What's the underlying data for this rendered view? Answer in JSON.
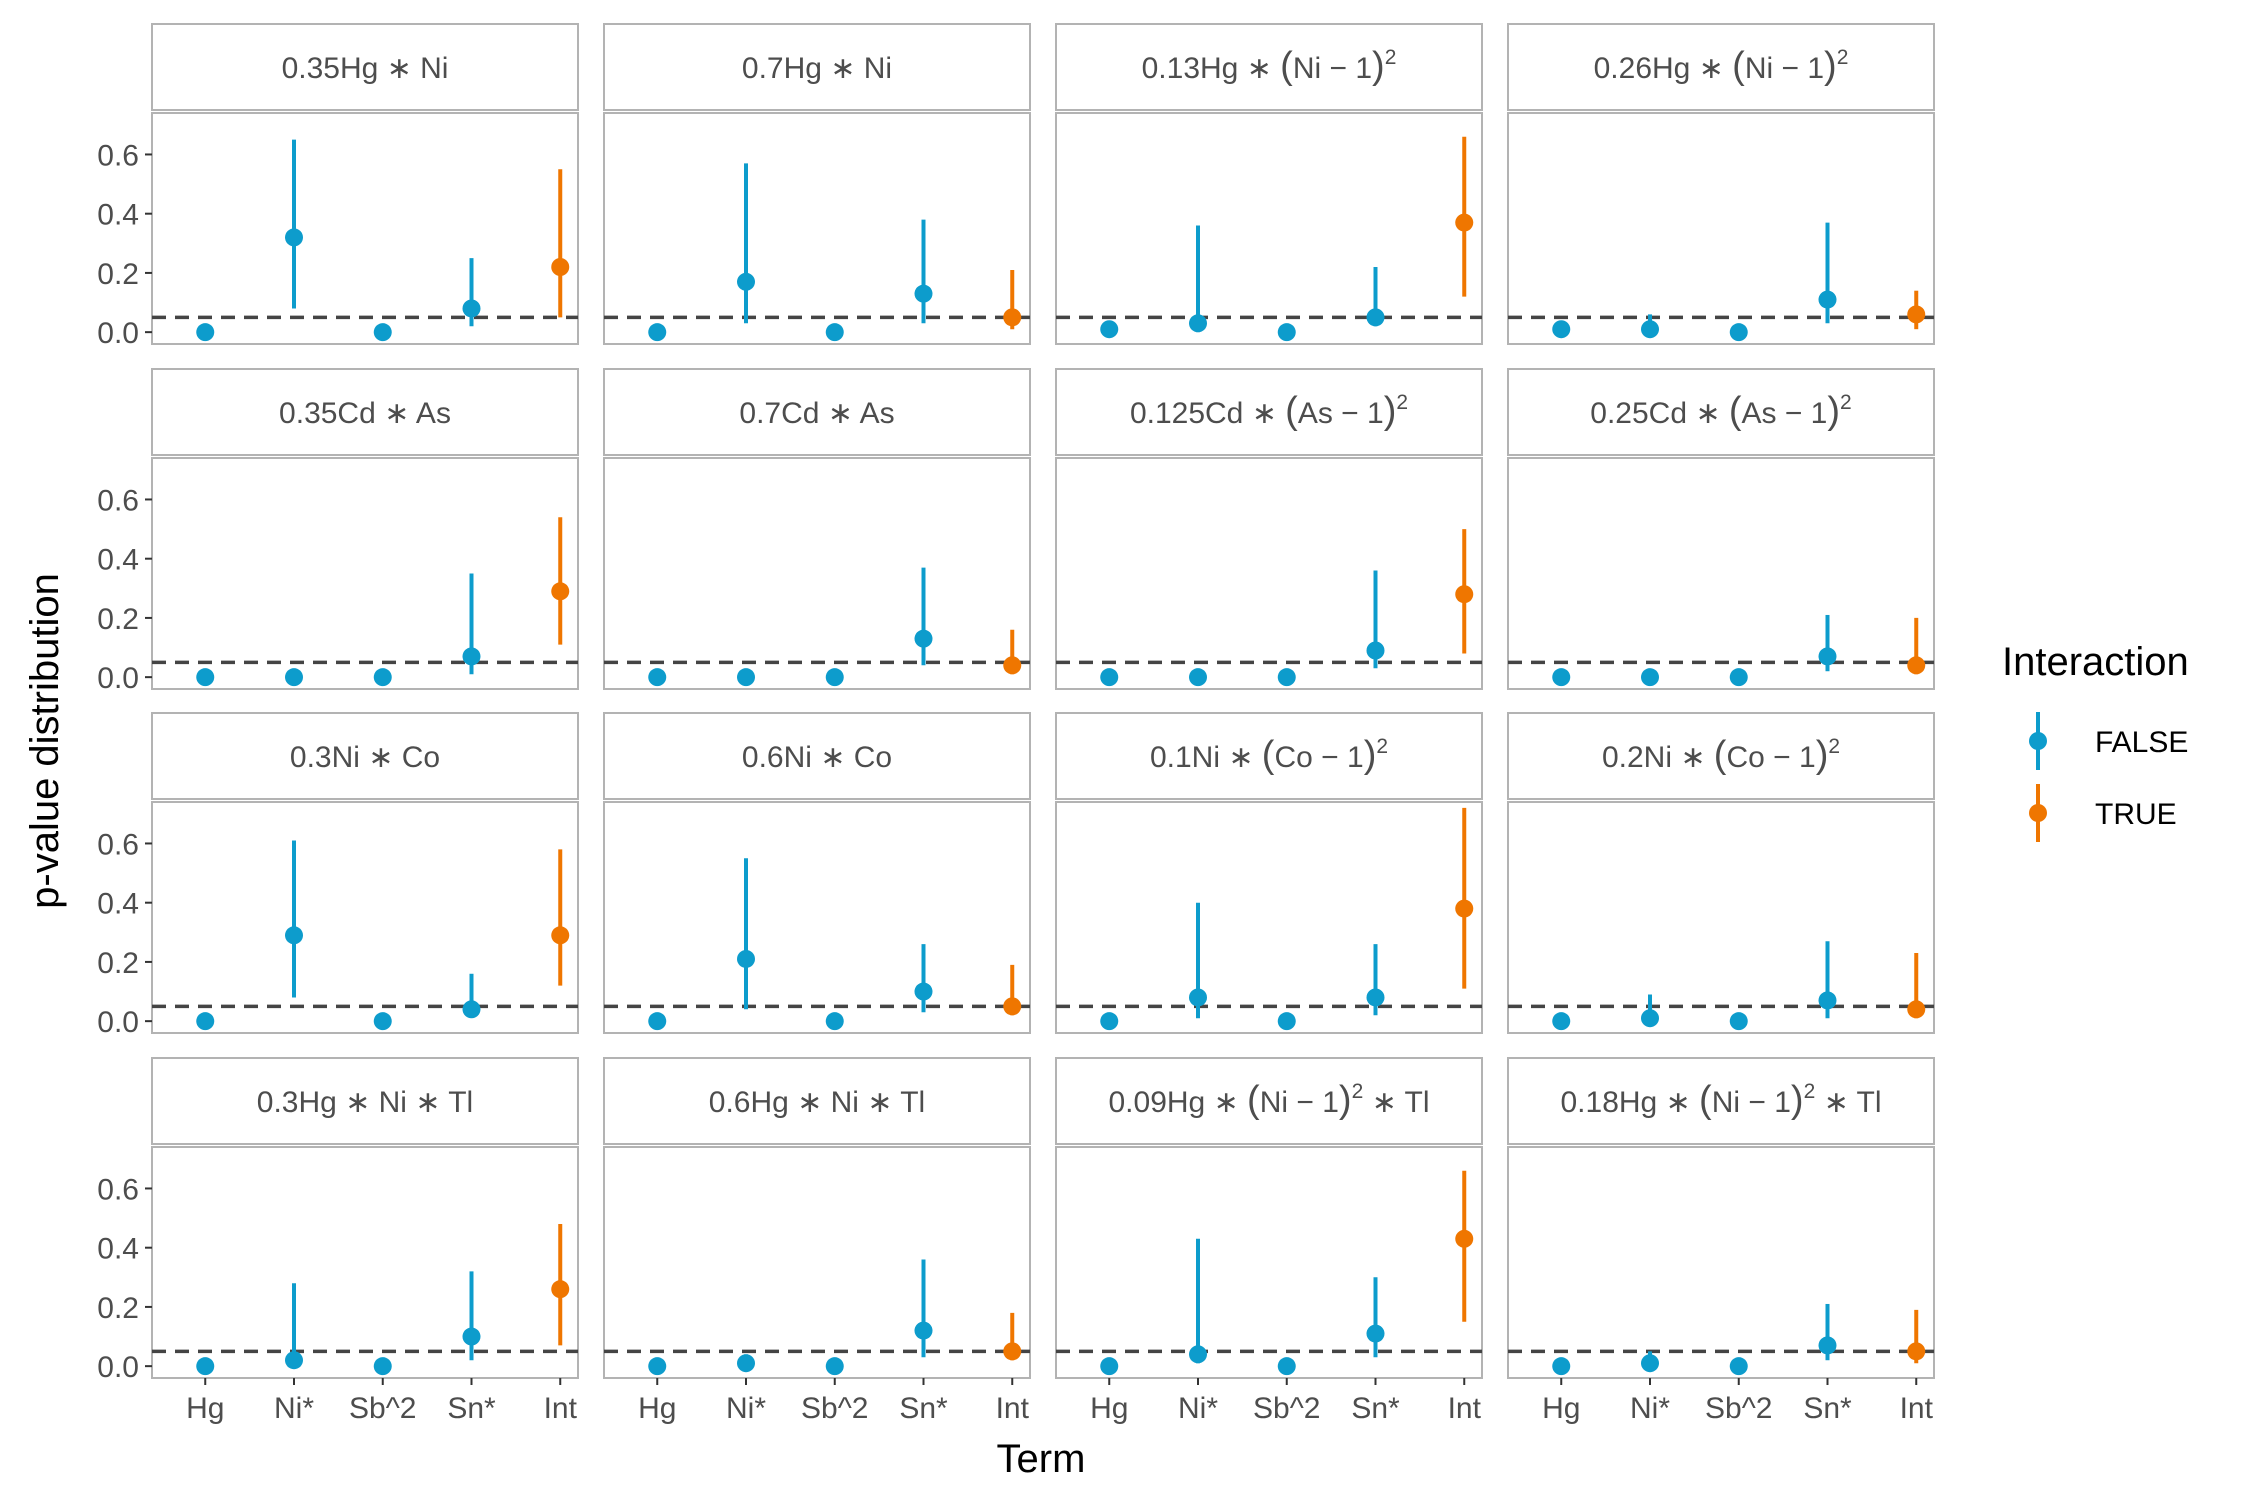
{
  "chart_data": {
    "type": "scatter",
    "subtype": "pointrange-facet-grid",
    "xlabel": "Term",
    "ylabel": "p-value distribution",
    "categories": [
      "Hg",
      "Ni*",
      "Sb^2",
      "Sn*",
      "Int"
    ],
    "ylim": [
      -0.04,
      0.74
    ],
    "yticks": [
      "0.0",
      "0.2",
      "0.4",
      "0.6"
    ],
    "ytick_values": [
      0,
      0.2,
      0.4,
      0.6
    ],
    "reference_line": 0.05,
    "grid": false,
    "legend": {
      "title": "Interaction",
      "position": "right",
      "items": [
        {
          "label": "FALSE",
          "color": "#0d9ccc"
        },
        {
          "label": "TRUE",
          "color": "#ef7600"
        }
      ]
    },
    "colors": {
      "false": "#0d9ccc",
      "true": "#ef7600",
      "reference_line": "#444444",
      "panel_border": "#b3b3b3"
    },
    "interaction_flags": [
      false,
      false,
      false,
      false,
      true
    ],
    "panels": [
      {
        "label": "0.35Hg ∗ Ni",
        "label_parts": [
          [
            "0.35Hg ∗ Ni",
            0
          ]
        ],
        "points": [
          {
            "y": 0,
            "lo": 0,
            "hi": 0.005
          },
          {
            "y": 0.32,
            "lo": 0.08,
            "hi": 0.65
          },
          {
            "y": 0,
            "lo": 0,
            "hi": 0.005
          },
          {
            "y": 0.08,
            "lo": 0.02,
            "hi": 0.25
          },
          {
            "y": 0.22,
            "lo": 0.05,
            "hi": 0.55
          }
        ]
      },
      {
        "label": "0.7Hg ∗ Ni",
        "label_parts": [
          [
            "0.7Hg ∗ Ni",
            0
          ]
        ],
        "points": [
          {
            "y": 0,
            "lo": 0,
            "hi": 0.005
          },
          {
            "y": 0.17,
            "lo": 0.03,
            "hi": 0.57
          },
          {
            "y": 0,
            "lo": 0,
            "hi": 0.005
          },
          {
            "y": 0.13,
            "lo": 0.03,
            "hi": 0.38
          },
          {
            "y": 0.05,
            "lo": 0.01,
            "hi": 0.21
          }
        ]
      },
      {
        "label": "0.13Hg ∗ (Ni − 1)2",
        "label_parts": [
          [
            "0.13Hg ∗ ",
            0
          ],
          [
            "(",
            0
          ],
          [
            "Ni − 1",
            0
          ],
          [
            ")",
            0
          ],
          [
            "2",
            1
          ]
        ],
        "points": [
          {
            "y": 0.01,
            "lo": 0,
            "hi": 0.03
          },
          {
            "y": 0.03,
            "lo": 0,
            "hi": 0.36
          },
          {
            "y": 0,
            "lo": 0,
            "hi": 0.005
          },
          {
            "y": 0.05,
            "lo": 0.02,
            "hi": 0.22
          },
          {
            "y": 0.37,
            "lo": 0.12,
            "hi": 0.66
          }
        ]
      },
      {
        "label": "0.26Hg ∗ (Ni − 1)2",
        "label_parts": [
          [
            "0.26Hg ∗ ",
            0
          ],
          [
            "(",
            0
          ],
          [
            "Ni − 1",
            0
          ],
          [
            ")",
            0
          ],
          [
            "2",
            1
          ]
        ],
        "points": [
          {
            "y": 0.01,
            "lo": 0,
            "hi": 0.03
          },
          {
            "y": 0.01,
            "lo": 0,
            "hi": 0.06
          },
          {
            "y": 0,
            "lo": 0,
            "hi": 0.005
          },
          {
            "y": 0.11,
            "lo": 0.03,
            "hi": 0.37
          },
          {
            "y": 0.06,
            "lo": 0.01,
            "hi": 0.14
          }
        ]
      },
      {
        "label": "0.35Cd ∗ As",
        "label_parts": [
          [
            "0.35Cd ∗ As",
            0
          ]
        ],
        "points": [
          {
            "y": 0,
            "lo": 0,
            "hi": 0.005
          },
          {
            "y": 0,
            "lo": 0,
            "hi": 0.005
          },
          {
            "y": 0,
            "lo": 0,
            "hi": 0.005
          },
          {
            "y": 0.07,
            "lo": 0.01,
            "hi": 0.35
          },
          {
            "y": 0.29,
            "lo": 0.11,
            "hi": 0.54
          }
        ]
      },
      {
        "label": "0.7Cd ∗ As",
        "label_parts": [
          [
            "0.7Cd ∗ As",
            0
          ]
        ],
        "points": [
          {
            "y": 0,
            "lo": 0,
            "hi": 0.005
          },
          {
            "y": 0,
            "lo": 0,
            "hi": 0.005
          },
          {
            "y": 0,
            "lo": 0,
            "hi": 0.005
          },
          {
            "y": 0.13,
            "lo": 0.04,
            "hi": 0.37
          },
          {
            "y": 0.04,
            "lo": 0.01,
            "hi": 0.16
          }
        ]
      },
      {
        "label": "0.125Cd ∗ (As − 1)2",
        "label_parts": [
          [
            "0.125Cd ∗ ",
            0
          ],
          [
            "(",
            0
          ],
          [
            "As − 1",
            0
          ],
          [
            ")",
            0
          ],
          [
            "2",
            1
          ]
        ],
        "points": [
          {
            "y": 0,
            "lo": 0,
            "hi": 0.005
          },
          {
            "y": 0,
            "lo": 0,
            "hi": 0.005
          },
          {
            "y": 0,
            "lo": 0,
            "hi": 0.005
          },
          {
            "y": 0.09,
            "lo": 0.03,
            "hi": 0.36
          },
          {
            "y": 0.28,
            "lo": 0.08,
            "hi": 0.5
          }
        ]
      },
      {
        "label": "0.25Cd ∗ (As − 1)2",
        "label_parts": [
          [
            "0.25Cd ∗ ",
            0
          ],
          [
            "(",
            0
          ],
          [
            "As − 1",
            0
          ],
          [
            ")",
            0
          ],
          [
            "2",
            1
          ]
        ],
        "points": [
          {
            "y": 0,
            "lo": 0,
            "hi": 0.005
          },
          {
            "y": 0,
            "lo": 0,
            "hi": 0.005
          },
          {
            "y": 0,
            "lo": 0,
            "hi": 0.005
          },
          {
            "y": 0.07,
            "lo": 0.02,
            "hi": 0.21
          },
          {
            "y": 0.04,
            "lo": 0.01,
            "hi": 0.2
          }
        ]
      },
      {
        "label": "0.3Ni ∗ Co",
        "label_parts": [
          [
            "0.3Ni ∗ Co",
            0
          ]
        ],
        "points": [
          {
            "y": 0,
            "lo": 0,
            "hi": 0.005
          },
          {
            "y": 0.29,
            "lo": 0.08,
            "hi": 0.61
          },
          {
            "y": 0,
            "lo": 0,
            "hi": 0.005
          },
          {
            "y": 0.04,
            "lo": 0.02,
            "hi": 0.16
          },
          {
            "y": 0.29,
            "lo": 0.12,
            "hi": 0.58
          }
        ]
      },
      {
        "label": "0.6Ni ∗ Co",
        "label_parts": [
          [
            "0.6Ni ∗ Co",
            0
          ]
        ],
        "points": [
          {
            "y": 0,
            "lo": 0,
            "hi": 0.005
          },
          {
            "y": 0.21,
            "lo": 0.04,
            "hi": 0.55
          },
          {
            "y": 0,
            "lo": 0,
            "hi": 0.005
          },
          {
            "y": 0.1,
            "lo": 0.03,
            "hi": 0.26
          },
          {
            "y": 0.05,
            "lo": 0.02,
            "hi": 0.19
          }
        ]
      },
      {
        "label": "0.1Ni ∗ (Co − 1)2",
        "label_parts": [
          [
            "0.1Ni ∗ ",
            0
          ],
          [
            "(",
            0
          ],
          [
            "Co − 1",
            0
          ],
          [
            ")",
            0
          ],
          [
            "2",
            1
          ]
        ],
        "points": [
          {
            "y": 0,
            "lo": 0,
            "hi": 0.005
          },
          {
            "y": 0.08,
            "lo": 0.01,
            "hi": 0.4
          },
          {
            "y": 0,
            "lo": 0,
            "hi": 0.005
          },
          {
            "y": 0.08,
            "lo": 0.02,
            "hi": 0.26
          },
          {
            "y": 0.38,
            "lo": 0.11,
            "hi": 0.72
          }
        ]
      },
      {
        "label": "0.2Ni ∗ (Co − 1)2",
        "label_parts": [
          [
            "0.2Ni ∗ ",
            0
          ],
          [
            "(",
            0
          ],
          [
            "Co − 1",
            0
          ],
          [
            ")",
            0
          ],
          [
            "2",
            1
          ]
        ],
        "points": [
          {
            "y": 0,
            "lo": 0,
            "hi": 0.005
          },
          {
            "y": 0.01,
            "lo": 0,
            "hi": 0.09
          },
          {
            "y": 0,
            "lo": 0,
            "hi": 0.005
          },
          {
            "y": 0.07,
            "lo": 0.01,
            "hi": 0.27
          },
          {
            "y": 0.04,
            "lo": 0.01,
            "hi": 0.23
          }
        ]
      },
      {
        "label": "0.3Hg ∗ Ni ∗ Tl",
        "label_parts": [
          [
            "0.3Hg ∗ Ni ∗ Tl",
            0
          ]
        ],
        "points": [
          {
            "y": 0,
            "lo": 0,
            "hi": 0.005
          },
          {
            "y": 0.02,
            "lo": 0,
            "hi": 0.28
          },
          {
            "y": 0,
            "lo": 0,
            "hi": 0.005
          },
          {
            "y": 0.1,
            "lo": 0.02,
            "hi": 0.32
          },
          {
            "y": 0.26,
            "lo": 0.07,
            "hi": 0.48
          }
        ]
      },
      {
        "label": "0.6Hg ∗ Ni ∗ Tl",
        "label_parts": [
          [
            "0.6Hg ∗ Ni ∗ Tl",
            0
          ]
        ],
        "points": [
          {
            "y": 0,
            "lo": 0,
            "hi": 0.005
          },
          {
            "y": 0.01,
            "lo": 0,
            "hi": 0.04
          },
          {
            "y": 0,
            "lo": 0,
            "hi": 0.005
          },
          {
            "y": 0.12,
            "lo": 0.03,
            "hi": 0.36
          },
          {
            "y": 0.05,
            "lo": 0.02,
            "hi": 0.18
          }
        ]
      },
      {
        "label": "0.09Hg ∗ (Ni − 1)2 ∗ Tl",
        "label_parts": [
          [
            "0.09Hg ∗ ",
            0
          ],
          [
            "(",
            0
          ],
          [
            "Ni − 1",
            0
          ],
          [
            ")",
            0
          ],
          [
            "2",
            1
          ],
          [
            " ∗ Tl",
            0
          ]
        ],
        "points": [
          {
            "y": 0,
            "lo": 0,
            "hi": 0.005
          },
          {
            "y": 0.04,
            "lo": 0.01,
            "hi": 0.43
          },
          {
            "y": 0,
            "lo": 0,
            "hi": 0.005
          },
          {
            "y": 0.11,
            "lo": 0.03,
            "hi": 0.3
          },
          {
            "y": 0.43,
            "lo": 0.15,
            "hi": 0.66
          }
        ]
      },
      {
        "label": "0.18Hg ∗ (Ni − 1)2 ∗ Tl",
        "label_parts": [
          [
            "0.18Hg ∗ ",
            0
          ],
          [
            "(",
            0
          ],
          [
            "Ni − 1",
            0
          ],
          [
            ")",
            0
          ],
          [
            "2",
            1
          ],
          [
            " ∗ Tl",
            0
          ]
        ],
        "points": [
          {
            "y": 0,
            "lo": 0,
            "hi": 0.005
          },
          {
            "y": 0.01,
            "lo": 0,
            "hi": 0.05
          },
          {
            "y": 0,
            "lo": 0,
            "hi": 0.005
          },
          {
            "y": 0.07,
            "lo": 0.02,
            "hi": 0.21
          },
          {
            "y": 0.05,
            "lo": 0.01,
            "hi": 0.19
          }
        ]
      }
    ]
  }
}
